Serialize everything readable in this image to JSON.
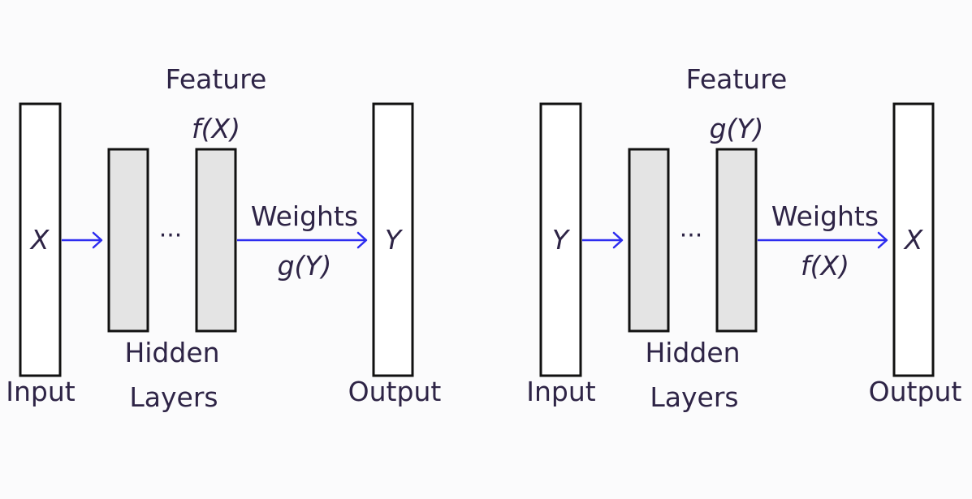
{
  "colors": {
    "background": "#fbfbfc",
    "text": "#2e2446",
    "arrow": "#2d2cf0",
    "hidden_box_fill": "#e4e4e4",
    "box_stroke": "#111111"
  },
  "panels": [
    {
      "input_label": "Input",
      "input_var": "X",
      "hidden_label_line1": "Hidden",
      "hidden_label_line2": "Layers",
      "ellipsis": "···",
      "feature_label": "Feature",
      "feature_expr": "f(X)",
      "weights_label": "Weights",
      "weights_expr": "g(Y)",
      "output_label": "Output",
      "output_var": "Y"
    },
    {
      "input_label": "Input",
      "input_var": "Y",
      "hidden_label_line1": "Hidden",
      "hidden_label_line2": "Layers",
      "ellipsis": "···",
      "feature_label": "Feature",
      "feature_expr": "g(Y)",
      "weights_label": "Weights",
      "weights_expr": "f(X)",
      "output_label": "Output",
      "output_var": "X"
    }
  ]
}
